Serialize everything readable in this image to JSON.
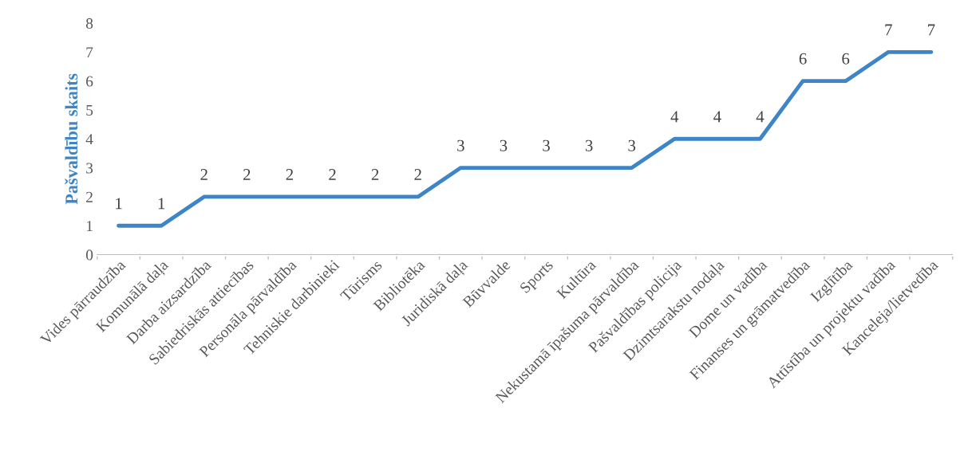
{
  "chart_data": {
    "type": "line",
    "ylabel": "Pašvaldību skaits",
    "categories": [
      "Vides pārraudzība",
      "Komunālā daļa",
      "Darba aizsardzība",
      "Sabiedriskās attiecības",
      "Personāla pārvaldība",
      "Tehniskie darbinieki",
      "Tūrisms",
      "Bibliotēka",
      "Juridiskā daļa",
      "Būvvalde",
      "Sports",
      "Kultūra",
      "Nekustamā īpašuma pārvaldība",
      "Pašvaldības policija",
      "Dzimtsarakstu nodaļa",
      "Dome un vadība",
      "Finanses un grāmatvedība",
      "Izglītība",
      "Attīstība un projektu vadība",
      "Kanceleja/lietvedība"
    ],
    "series": [
      {
        "color": "#3d85c6",
        "values": [
          1,
          1,
          2,
          2,
          2,
          2,
          2,
          2,
          3,
          3,
          3,
          3,
          3,
          4,
          4,
          4,
          6,
          6,
          7,
          7
        ]
      }
    ],
    "ylim": [
      0,
      8
    ],
    "yticks": [
      0,
      1,
      2,
      3,
      4,
      5,
      6,
      7,
      8
    ],
    "marker": "none",
    "line_style": "solid",
    "data_labels": true
  }
}
